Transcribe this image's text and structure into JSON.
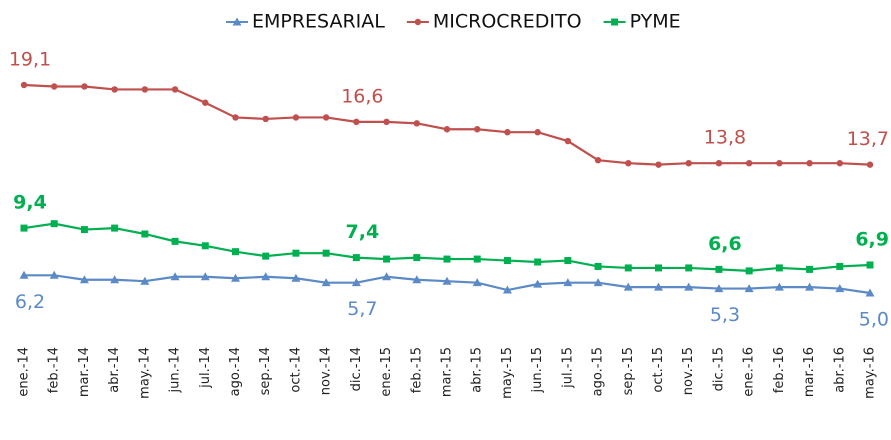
{
  "chart_data": {
    "type": "line",
    "categories": [
      "ene.-14",
      "feb.-14",
      "mar.-14",
      "abr.-14",
      "may.-14",
      "jun.-14",
      "jul.-14",
      "ago.-14",
      "sep.-14",
      "oct.-14",
      "nov.-14",
      "dic.-14",
      "ene.-15",
      "feb.-15",
      "mar.-15",
      "abr.-15",
      "may.-15",
      "jun.-15",
      "jul.-15",
      "ago.-15",
      "sep.-15",
      "oct.-15",
      "nov.-15",
      "dic.-15",
      "ene.-16",
      "feb.-16",
      "mar.-16",
      "abr.-16",
      "may.-16"
    ],
    "legend": "top",
    "series": [
      {
        "name": "EMPRESARIAL",
        "color": "#5b8ac6",
        "marker": "triangle",
        "label_position": "below",
        "label_bold": false,
        "values": [
          6.2,
          6.2,
          5.9,
          5.9,
          5.8,
          6.1,
          6.1,
          6.0,
          6.1,
          6.0,
          5.7,
          5.7,
          6.1,
          5.9,
          5.8,
          5.7,
          5.2,
          5.6,
          5.7,
          5.7,
          5.4,
          5.4,
          5.4,
          5.3,
          5.3,
          5.4,
          5.4,
          5.3,
          5.0
        ],
        "value_labels": [
          "6,2",
          null,
          null,
          null,
          null,
          null,
          null,
          null,
          null,
          null,
          null,
          "5,7",
          null,
          null,
          null,
          null,
          null,
          null,
          null,
          null,
          null,
          null,
          null,
          "5,3",
          null,
          null,
          null,
          null,
          "5,0"
        ]
      },
      {
        "name": "MICROCREDITO",
        "color": "#c0504d",
        "marker": "circle",
        "label_position": "above",
        "label_bold": false,
        "values": [
          19.1,
          19.0,
          19.0,
          18.8,
          18.8,
          18.8,
          17.9,
          16.9,
          16.8,
          16.9,
          16.9,
          16.6,
          16.6,
          16.5,
          16.1,
          16.1,
          15.9,
          15.9,
          15.3,
          14.0,
          13.8,
          13.7,
          13.8,
          13.8,
          13.8,
          13.8,
          13.8,
          13.8,
          13.7
        ],
        "value_labels": [
          "19,1",
          null,
          null,
          null,
          null,
          null,
          null,
          null,
          null,
          null,
          null,
          "16,6",
          null,
          null,
          null,
          null,
          null,
          null,
          null,
          null,
          null,
          null,
          null,
          "13,8",
          null,
          null,
          null,
          null,
          "13,7"
        ]
      },
      {
        "name": "PYME",
        "color": "#00b050",
        "marker": "square",
        "label_position": "above",
        "label_bold": true,
        "values": [
          9.4,
          9.7,
          9.3,
          9.4,
          9.0,
          8.5,
          8.2,
          7.8,
          7.5,
          7.7,
          7.7,
          7.4,
          7.3,
          7.4,
          7.3,
          7.3,
          7.2,
          7.1,
          7.2,
          6.8,
          6.7,
          6.7,
          6.7,
          6.6,
          6.5,
          6.7,
          6.6,
          6.8,
          6.9
        ],
        "value_labels": [
          "9,4",
          null,
          null,
          null,
          null,
          null,
          null,
          null,
          null,
          null,
          null,
          "7,4",
          null,
          null,
          null,
          null,
          null,
          null,
          null,
          null,
          null,
          null,
          null,
          "6,6",
          null,
          null,
          null,
          null,
          "6,9"
        ]
      }
    ]
  }
}
